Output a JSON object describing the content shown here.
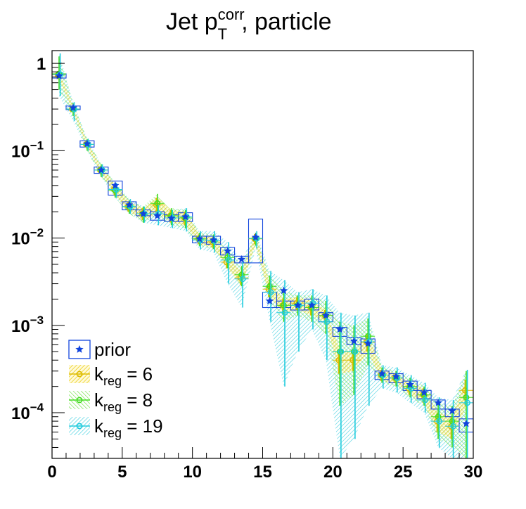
{
  "chart_data": {
    "type": "line",
    "title": {
      "main": "Jet p",
      "sup": "corr",
      "sub": "T",
      "rest": ", particle"
    },
    "xlabel": "",
    "ylabel": "",
    "xlim": [
      0,
      30
    ],
    "ylim": [
      3e-05,
      1.4
    ],
    "y_scale": "log",
    "grid": false,
    "legend_position": "bottom-left",
    "x_ticks": [
      "0",
      "5",
      "10",
      "15",
      "20",
      "25",
      "30"
    ],
    "y_ticks": [
      {
        "base": "1",
        "exp": ""
      },
      {
        "base": "10",
        "exp": "−1"
      },
      {
        "base": "10",
        "exp": "−2"
      },
      {
        "base": "10",
        "exp": "−3"
      },
      {
        "base": "10",
        "exp": "−4"
      }
    ],
    "bin_centers": [
      0.5,
      1.5,
      2.5,
      3.5,
      4.5,
      5.5,
      6.5,
      7.5,
      8.5,
      9.5,
      10.5,
      11.5,
      12.5,
      13.5,
      14.5,
      15.5,
      16.5,
      17.5,
      18.5,
      19.5,
      20.5,
      21.5,
      22.5,
      23.5,
      24.5,
      25.5,
      26.5,
      27.5,
      28.5,
      29.5
    ],
    "series": [
      {
        "name": "prior",
        "color": "#1144dd",
        "values": [
          0.72,
          0.31,
          0.12,
          0.06,
          0.04,
          0.024,
          0.019,
          0.018,
          0.0168,
          0.0175,
          0.0098,
          0.0095,
          0.0071,
          0.0057,
          0.0102,
          0.0019,
          0.0025,
          0.0017,
          0.0017,
          0.0013,
          0.0009,
          0.00066,
          0.00062,
          0.00028,
          0.00026,
          0.00021,
          0.00017,
          0.00013,
          0.000105,
          7.5e-05
        ],
        "box_low": [
          0.68,
          0.295,
          0.11,
          0.055,
          0.031,
          0.021,
          0.018,
          0.016,
          0.0155,
          0.0155,
          0.0088,
          0.0085,
          0.0064,
          0.0052,
          0.0052,
          0.0016,
          0.0016,
          0.0015,
          0.0015,
          0.0011,
          0.00075,
          0.0006,
          0.00048,
          0.00024,
          0.00022,
          0.00018,
          0.000145,
          0.00011,
          9e-05,
          6e-05
        ],
        "box_high": [
          0.76,
          0.325,
          0.13,
          0.065,
          0.045,
          0.026,
          0.021,
          0.02,
          0.0185,
          0.0195,
          0.0105,
          0.0105,
          0.0078,
          0.0062,
          0.0165,
          0.0024,
          0.0019,
          0.0019,
          0.002,
          0.0014,
          0.00095,
          0.00072,
          0.0007,
          0.0003,
          0.00028,
          0.00023,
          0.00018,
          0.00014,
          0.00011,
          8.5e-05
        ]
      },
      {
        "name": "k_reg = 6",
        "legend_label": {
          "base": "k",
          "sub": "reg",
          "rest": " = 6"
        },
        "color": "#ddbb00",
        "values": [
          0.74,
          0.3,
          0.118,
          0.06,
          0.036,
          0.023,
          0.019,
          0.024,
          0.018,
          0.017,
          0.0098,
          0.009,
          0.0053,
          0.0035,
          0.0098,
          0.0026,
          0.0017,
          0.0018,
          0.0016,
          0.0013,
          0.0004,
          0.0004,
          0.00064,
          0.00027,
          0.00025,
          0.00019,
          0.00016,
          8e-05,
          7e-05,
          0.00018
        ],
        "band_low": [
          0.66,
          0.28,
          0.11,
          0.055,
          0.031,
          0.02,
          0.016,
          0.019,
          0.015,
          0.014,
          0.0085,
          0.0078,
          0.0045,
          0.0029,
          0.0085,
          0.0021,
          0.0014,
          0.0015,
          0.0013,
          0.0011,
          0.00028,
          0.0003,
          0.0005,
          0.00023,
          0.00022,
          0.00016,
          0.00013,
          6e-05,
          5e-05,
          0.00012
        ],
        "band_high": [
          0.82,
          0.32,
          0.126,
          0.065,
          0.041,
          0.026,
          0.022,
          0.029,
          0.021,
          0.02,
          0.011,
          0.0102,
          0.0061,
          0.0041,
          0.0111,
          0.0031,
          0.002,
          0.0021,
          0.0019,
          0.0015,
          0.00052,
          0.0005,
          0.00078,
          0.00031,
          0.00028,
          0.00022,
          0.00019,
          0.0001,
          9e-05,
          0.00024
        ]
      },
      {
        "name": "k_reg = 8",
        "legend_label": {
          "base": "k",
          "sub": "reg",
          "rest": " = 8"
        },
        "color": "#44dd22",
        "values": [
          0.76,
          0.3,
          0.118,
          0.06,
          0.035,
          0.023,
          0.019,
          0.025,
          0.018,
          0.017,
          0.0098,
          0.0093,
          0.006,
          0.0038,
          0.0099,
          0.0028,
          0.0017,
          0.0017,
          0.0016,
          0.0013,
          0.0005,
          0.0005,
          0.00075,
          0.00027,
          0.00025,
          0.0002,
          0.00016,
          9e-05,
          8e-05,
          0.00015
        ],
        "band_low": [
          0.5,
          0.25,
          0.1,
          0.05,
          0.029,
          0.019,
          0.015,
          0.018,
          0.014,
          0.013,
          0.0081,
          0.0075,
          0.0045,
          0.0028,
          0.0082,
          0.0019,
          0.0011,
          0.0013,
          0.0011,
          0.0008,
          0.00012,
          0.00016,
          0.00035,
          0.00022,
          0.0002,
          0.00015,
          0.00012,
          5e-05,
          4e-05,
          3e-05
        ],
        "band_high": [
          1.2,
          0.35,
          0.136,
          0.07,
          0.042,
          0.027,
          0.023,
          0.032,
          0.022,
          0.021,
          0.0115,
          0.011,
          0.0075,
          0.0048,
          0.0115,
          0.0037,
          0.0025,
          0.0022,
          0.0022,
          0.0019,
          0.0011,
          0.001,
          0.0012,
          0.00033,
          0.0003,
          0.00025,
          0.0002,
          0.00013,
          0.00012,
          0.0003
        ]
      },
      {
        "name": "k_reg = 19",
        "legend_label": {
          "base": "k",
          "sub": "reg",
          "rest": " = 19"
        },
        "color": "#22ccdd",
        "values": [
          0.75,
          0.3,
          0.118,
          0.06,
          0.036,
          0.023,
          0.019,
          0.019,
          0.017,
          0.0175,
          0.0095,
          0.0093,
          0.0056,
          0.0034,
          0.0099,
          0.0024,
          0.0014,
          0.0017,
          0.0018,
          0.0011,
          0.0005,
          0.0005,
          0.00065,
          0.00027,
          0.00025,
          0.00019,
          0.00014,
          8e-05,
          7e-05,
          0.00013
        ],
        "band_low": [
          0.42,
          0.22,
          0.1,
          0.05,
          0.029,
          0.019,
          0.015,
          0.014,
          0.013,
          0.012,
          0.0074,
          0.0068,
          0.003,
          0.0016,
          0.0076,
          0.0011,
          0.0002,
          0.0005,
          0.0009,
          0.0004,
          3e-05,
          5e-05,
          0.00012,
          0.00019,
          0.00017,
          0.00013,
          0.0001,
          4e-05,
          3e-05,
          3e-05
        ],
        "band_high": [
          1.3,
          0.36,
          0.137,
          0.07,
          0.043,
          0.028,
          0.023,
          0.024,
          0.021,
          0.022,
          0.012,
          0.012,
          0.009,
          0.0055,
          0.012,
          0.0042,
          0.0033,
          0.0024,
          0.0026,
          0.0022,
          0.0014,
          0.0013,
          0.0014,
          0.00035,
          0.00033,
          0.00027,
          0.00022,
          0.00015,
          0.00014,
          0.00031
        ]
      }
    ]
  }
}
